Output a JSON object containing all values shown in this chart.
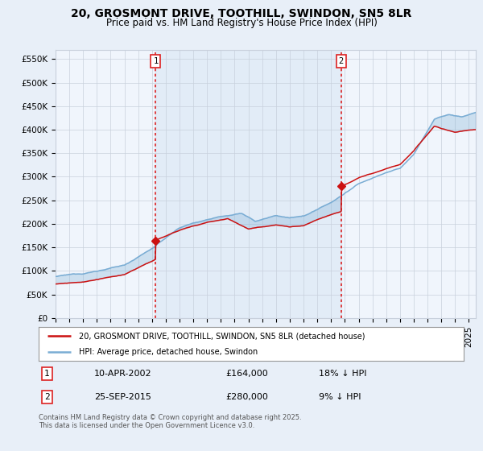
{
  "title": "20, GROSMONT DRIVE, TOOTHILL, SWINDON, SN5 8LR",
  "subtitle": "Price paid vs. HM Land Registry's House Price Index (HPI)",
  "ylabel_ticks": [
    "£0",
    "£50K",
    "£100K",
    "£150K",
    "£200K",
    "£250K",
    "£300K",
    "£350K",
    "£400K",
    "£450K",
    "£500K",
    "£550K"
  ],
  "ytick_values": [
    0,
    50000,
    100000,
    150000,
    200000,
    250000,
    300000,
    350000,
    400000,
    450000,
    500000,
    550000
  ],
  "ylim": [
    0,
    570000
  ],
  "xlim_start": 1995.0,
  "xlim_end": 2025.5,
  "sale1_x": 2002.27,
  "sale1_y": 164000,
  "sale2_x": 2015.73,
  "sale2_y": 280000,
  "sale1_label": "1",
  "sale2_label": "2",
  "vline_color": "#dd2222",
  "vline_style": ":",
  "hpi_color": "#7aadd4",
  "price_color": "#cc1111",
  "shade_between_vlines": "#ddeeff",
  "background_color": "#e8eff8",
  "plot_bg": "#f0f5fc",
  "legend_line1": "20, GROSMONT DRIVE, TOOTHILL, SWINDON, SN5 8LR (detached house)",
  "legend_line2": "HPI: Average price, detached house, Swindon",
  "table_row1": [
    "1",
    "10-APR-2002",
    "£164,000",
    "18% ↓ HPI"
  ],
  "table_row2": [
    "2",
    "25-SEP-2015",
    "£280,000",
    "9% ↓ HPI"
  ],
  "footer": "Contains HM Land Registry data © Crown copyright and database right 2025.\nThis data is licensed under the Open Government Licence v3.0.",
  "title_fontsize": 10,
  "subtitle_fontsize": 8.5,
  "tick_fontsize": 7.5,
  "grid_color": "#c8d0dc"
}
